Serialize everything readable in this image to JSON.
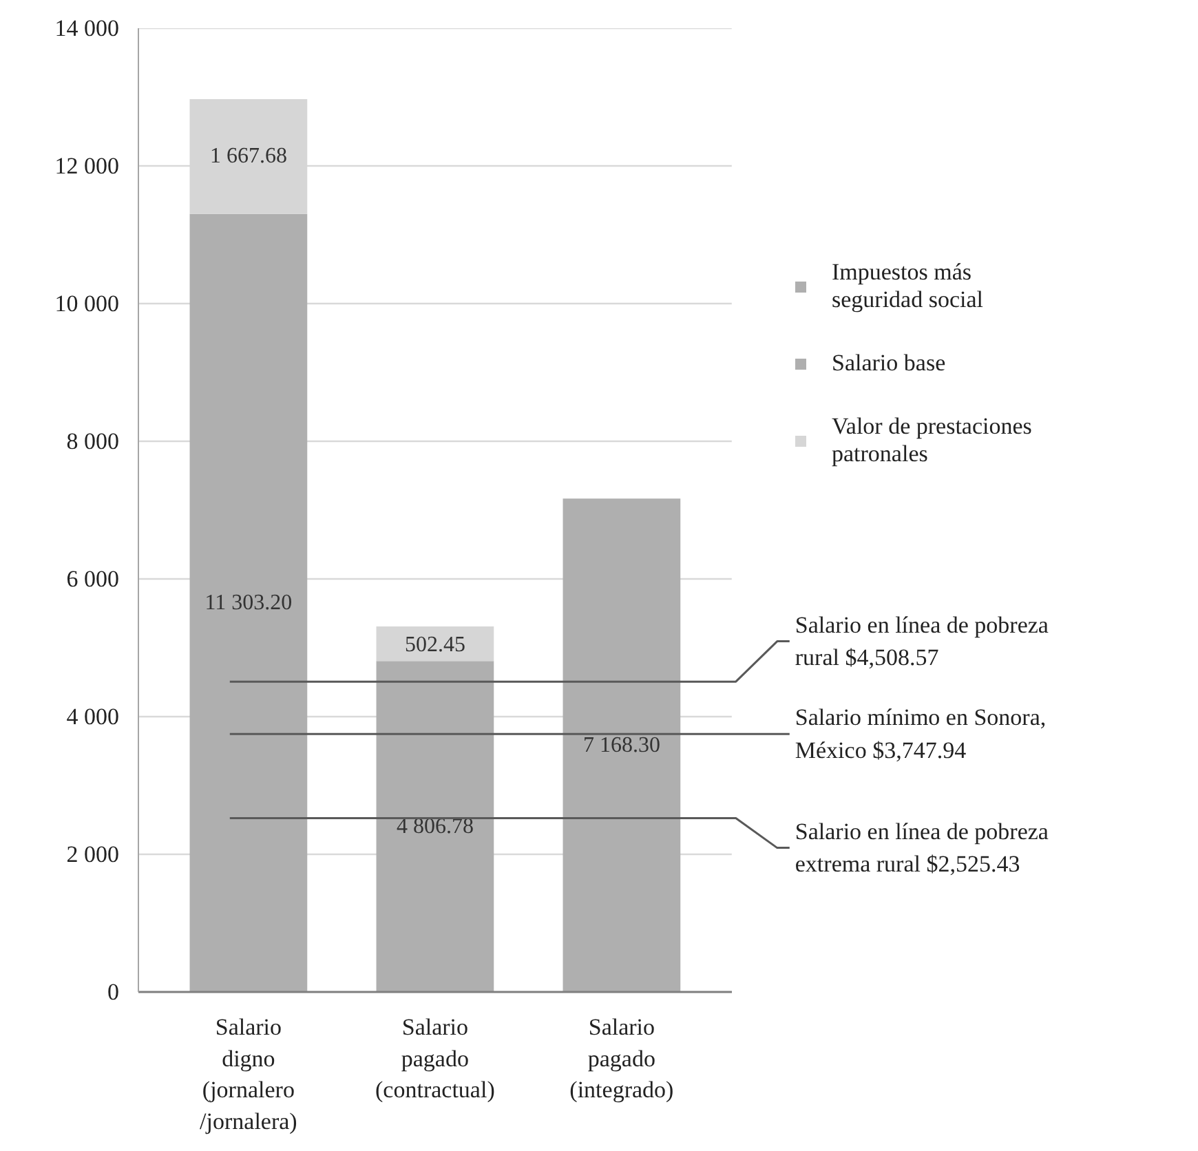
{
  "chart_data": {
    "type": "bar",
    "stacked": true,
    "categories": [
      "Salario digno (jornalero /jornalera)",
      "Salario pagado (contractual)",
      "Salario pagado (integrado)"
    ],
    "series": [
      {
        "name": "Impuestos más seguridad social",
        "color": "#afafaf",
        "values": [
          null,
          null,
          7168.3
        ],
        "value_labels": [
          null,
          null,
          "7 168.30"
        ]
      },
      {
        "name": "Salario base",
        "color": "#afafaf",
        "values": [
          11303.2,
          4806.78,
          null
        ],
        "value_labels": [
          "11 303.20",
          "4 806.78",
          null
        ]
      },
      {
        "name": "Valor de prestaciones patronales",
        "color": "#d6d6d6",
        "values": [
          1667.68,
          502.45,
          null
        ],
        "value_labels": [
          "1 667.68",
          "502.45",
          null
        ]
      }
    ],
    "ylim": [
      0,
      14000
    ],
    "yticks": [
      0,
      {
        "value": 2000,
        "label": "2 000"
      },
      {
        "value": 4000,
        "label": "4 000"
      },
      {
        "value": 6000,
        "label": "6 000"
      },
      {
        "value": 8000,
        "label": "8 000"
      },
      {
        "value": 10000,
        "label": "10 000"
      },
      {
        "value": 12000,
        "label": "12 000"
      },
      {
        "value": 14000,
        "label": "14 000"
      }
    ],
    "grid": "y",
    "legend": "right",
    "ref_lines": [
      {
        "axis": "y",
        "value": 4508.57,
        "label": "Salario en línea de pobreza rural $4,508.57",
        "color": "#595959"
      },
      {
        "axis": "y",
        "value": 3747.94,
        "label": "Salario mínimo en Sonora, México $3,747.94",
        "color": "#595959"
      },
      {
        "axis": "y",
        "value": 2525.43,
        "label": "Salario en línea de pobreza extrema rural $2,525.43",
        "color": "#595959"
      }
    ]
  }
}
